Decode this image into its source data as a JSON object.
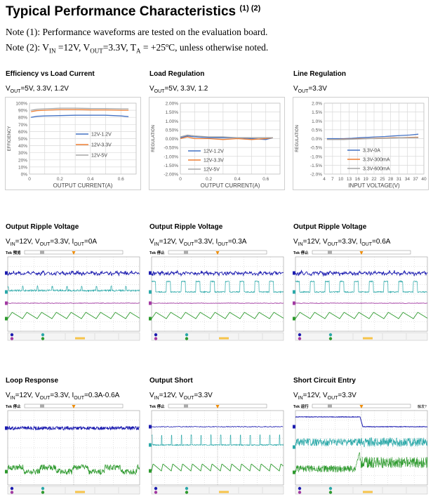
{
  "header": {
    "title": "Typical Performance Characteristics",
    "title_sup": "(1) (2)",
    "note1": "Note (1): Performance waveforms are tested on the evaluation board.",
    "note2_prefix": "Note (2): V",
    "note2_in_sub": "IN",
    "note2_mid1": " =12V, V",
    "note2_out_sub": "OUT",
    "note2_mid2": "=3.3V, T",
    "note2_a_sub": "A",
    "note2_suffix": " = +25ºC, unless otherwise noted."
  },
  "panels": [
    {
      "title": "Efficiency vs Load Current",
      "cond": [
        [
          "V",
          "OUT"
        ],
        [
          "=5V, 3.3V, 1.2V",
          ""
        ]
      ]
    },
    {
      "title": "Load Regulation",
      "cond": [
        [
          "V",
          "OUT"
        ],
        [
          "=5V, 3.3V, 1.2",
          ""
        ]
      ]
    },
    {
      "title": "Line Regulation",
      "cond": [
        [
          "V",
          "OUT"
        ],
        [
          "=3.3V",
          ""
        ]
      ]
    },
    {
      "title": "Output Ripple Voltage",
      "cond": [
        [
          "V",
          "IN"
        ],
        [
          "=12V, V",
          ""
        ],
        [
          "",
          "OUT"
        ],
        [
          "=3.3V, I",
          ""
        ],
        [
          "",
          "OUT"
        ],
        [
          "=0A",
          ""
        ]
      ]
    },
    {
      "title": "Output Ripple Voltage",
      "cond": [
        [
          "V",
          "IN"
        ],
        [
          "=12V, V",
          ""
        ],
        [
          "",
          "OUT"
        ],
        [
          "=3.3V, I",
          ""
        ],
        [
          "",
          "OUT"
        ],
        [
          "=0.3A",
          ""
        ]
      ]
    },
    {
      "title": "Output Ripple Voltage",
      "cond": [
        [
          "V",
          "IN"
        ],
        [
          "=12V, V",
          ""
        ],
        [
          "",
          "OUT"
        ],
        [
          "=3.3V, I",
          ""
        ],
        [
          "",
          "OUT"
        ],
        [
          "=0.6A",
          ""
        ]
      ]
    },
    {
      "title": "Loop Response",
      "cond": [
        [
          "V",
          "IN"
        ],
        [
          "=12V, V",
          ""
        ],
        [
          "",
          "OUT"
        ],
        [
          "=3.3V, I",
          ""
        ],
        [
          "",
          "OUT"
        ],
        [
          "=0.3A-0.6A",
          ""
        ]
      ]
    },
    {
      "title": "Output Short",
      "cond": [
        [
          "V",
          "IN"
        ],
        [
          "=12V, V",
          ""
        ],
        [
          "",
          "OUT"
        ],
        [
          "=3.3V",
          ""
        ]
      ]
    },
    {
      "title": "Short Circuit Entry",
      "cond": [
        [
          "V",
          "IN"
        ],
        [
          "=12V, V",
          ""
        ],
        [
          "",
          "OUT"
        ],
        [
          "=3.3V",
          ""
        ]
      ]
    }
  ],
  "chart_data": [
    {
      "type": "line",
      "title": "Efficiency vs Load Current",
      "xlabel": "OUTPUT CURRENT(A)",
      "ylabel": "EFFICIENCY",
      "xlim": [
        0,
        0.7
      ],
      "ylim": [
        0,
        100
      ],
      "xticks": [
        "0",
        "0.2",
        "0.4",
        "0.6"
      ],
      "yticks": [
        "0%",
        "10%",
        "20%",
        "30%",
        "40%",
        "50%",
        "60%",
        "70%",
        "80%",
        "90%",
        "100%"
      ],
      "series": [
        {
          "name": "12V-1.2V",
          "color": "#4472c4",
          "x": [
            0.01,
            0.05,
            0.1,
            0.2,
            0.3,
            0.4,
            0.5,
            0.6,
            0.65
          ],
          "y": [
            80,
            81.5,
            82,
            82.5,
            83,
            83,
            83,
            82,
            81
          ]
        },
        {
          "name": "12V-3.3V",
          "color": "#ed7d31",
          "x": [
            0.01,
            0.05,
            0.1,
            0.2,
            0.3,
            0.4,
            0.5,
            0.6,
            0.65
          ],
          "y": [
            88,
            89.5,
            90,
            91,
            91,
            90.5,
            90.5,
            90,
            90
          ]
        },
        {
          "name": "12V-5V",
          "color": "#a5a5a5",
          "x": [
            0.01,
            0.05,
            0.1,
            0.2,
            0.3,
            0.4,
            0.5,
            0.6,
            0.65
          ],
          "y": [
            90,
            91.5,
            92,
            93,
            93,
            92.5,
            92.5,
            92,
            92
          ]
        }
      ]
    },
    {
      "type": "line",
      "title": "Load Regulation",
      "xlabel": "OUTPUT CURRENT(A)",
      "ylabel": "REGULATION",
      "xlim": [
        0,
        0.7
      ],
      "ylim": [
        -2,
        2
      ],
      "xticks": [
        "0",
        "0.2",
        "0.4",
        "0.6"
      ],
      "yticks": [
        "-2.00%",
        "-1.50%",
        "-1.00%",
        "-0.50%",
        "0.00%",
        "0.50%",
        "1.00%",
        "1.50%",
        "2.00%"
      ],
      "series": [
        {
          "name": "12V-1.2V",
          "color": "#4472c4",
          "x": [
            0,
            0.05,
            0.1,
            0.2,
            0.3,
            0.4,
            0.5,
            0.6,
            0.65
          ],
          "y": [
            0.05,
            0.15,
            0.1,
            0.05,
            0.05,
            0.05,
            0.0,
            -0.05,
            0.05
          ]
        },
        {
          "name": "12V-3.3V",
          "color": "#ed7d31",
          "x": [
            0,
            0.05,
            0.1,
            0.2,
            0.3,
            0.4,
            0.5,
            0.6,
            0.65
          ],
          "y": [
            0.0,
            0.1,
            0.0,
            0.0,
            -0.05,
            0.0,
            -0.05,
            0.0,
            0.05
          ]
        },
        {
          "name": "12V-5V",
          "color": "#a5a5a5",
          "x": [
            0,
            0.05,
            0.1,
            0.2,
            0.3,
            0.4,
            0.5,
            0.6,
            0.65
          ],
          "y": [
            0.1,
            0.2,
            0.15,
            0.1,
            0.1,
            0.05,
            0.05,
            0.05,
            0.05
          ]
        }
      ]
    },
    {
      "type": "line",
      "title": "Line Regulation",
      "xlabel": "INPUT VOLTAGE(V)",
      "ylabel": "REGULATION",
      "xlim": [
        4,
        40
      ],
      "ylim": [
        -2,
        2
      ],
      "xticks": [
        "4",
        "7",
        "10",
        "13",
        "16",
        "19",
        "22",
        "25",
        "28",
        "31",
        "34",
        "37",
        "40"
      ],
      "yticks": [
        "-2.0%",
        "-1.5%",
        "-1.0%",
        "-0.5%",
        "0.0%",
        "0.5%",
        "1.0%",
        "1.5%",
        "2.0%"
      ],
      "series": [
        {
          "name": "3.3V-0A",
          "color": "#4472c4",
          "x": [
            5,
            8,
            11,
            14,
            17,
            20,
            23,
            26,
            29,
            32,
            35,
            38
          ],
          "y": [
            0.0,
            0.0,
            0.0,
            0.02,
            0.05,
            0.07,
            0.1,
            0.12,
            0.15,
            0.18,
            0.2,
            0.25
          ]
        },
        {
          "name": "3.3V-300mA",
          "color": "#ed7d31",
          "x": [
            5,
            8,
            11,
            14,
            17,
            20,
            23,
            26,
            29,
            32,
            35,
            38
          ],
          "y": [
            -0.05,
            -0.05,
            -0.03,
            -0.02,
            0.0,
            0.0,
            0.02,
            0.03,
            0.05,
            0.05,
            0.07,
            0.08
          ]
        },
        {
          "name": "3.3V-600mA",
          "color": "#a5a5a5",
          "x": [
            5,
            8,
            11,
            14,
            17,
            20,
            23,
            26,
            29,
            32,
            35,
            38
          ],
          "y": [
            -0.05,
            -0.05,
            -0.05,
            -0.03,
            -0.02,
            0.0,
            0.0,
            0.02,
            0.03,
            0.05,
            0.05,
            0.05
          ]
        }
      ]
    }
  ],
  "scopes": [
    {
      "name": "ripple-0a",
      "top_label": "Tek 预览",
      "wave": "ripple-light"
    },
    {
      "name": "ripple-03a",
      "top_label": "Tek 停止",
      "wave": "ripple-square"
    },
    {
      "name": "ripple-06a",
      "top_label": "Tek 停止",
      "wave": "ripple-square"
    },
    {
      "name": "loop",
      "top_label": "Tek 停止",
      "wave": "loop"
    },
    {
      "name": "short",
      "top_label": "Tek 停止",
      "wave": "short"
    },
    {
      "name": "entry",
      "top_label": "Tek 运行",
      "top_right": "触发?",
      "wave": "entry"
    }
  ],
  "colors": {
    "ch1": "#1c1cb0",
    "ch2": "#2aa8a8",
    "ch3": "#a23aa2",
    "ch4": "#2e9a2e",
    "grid": "#bdbdbd"
  }
}
